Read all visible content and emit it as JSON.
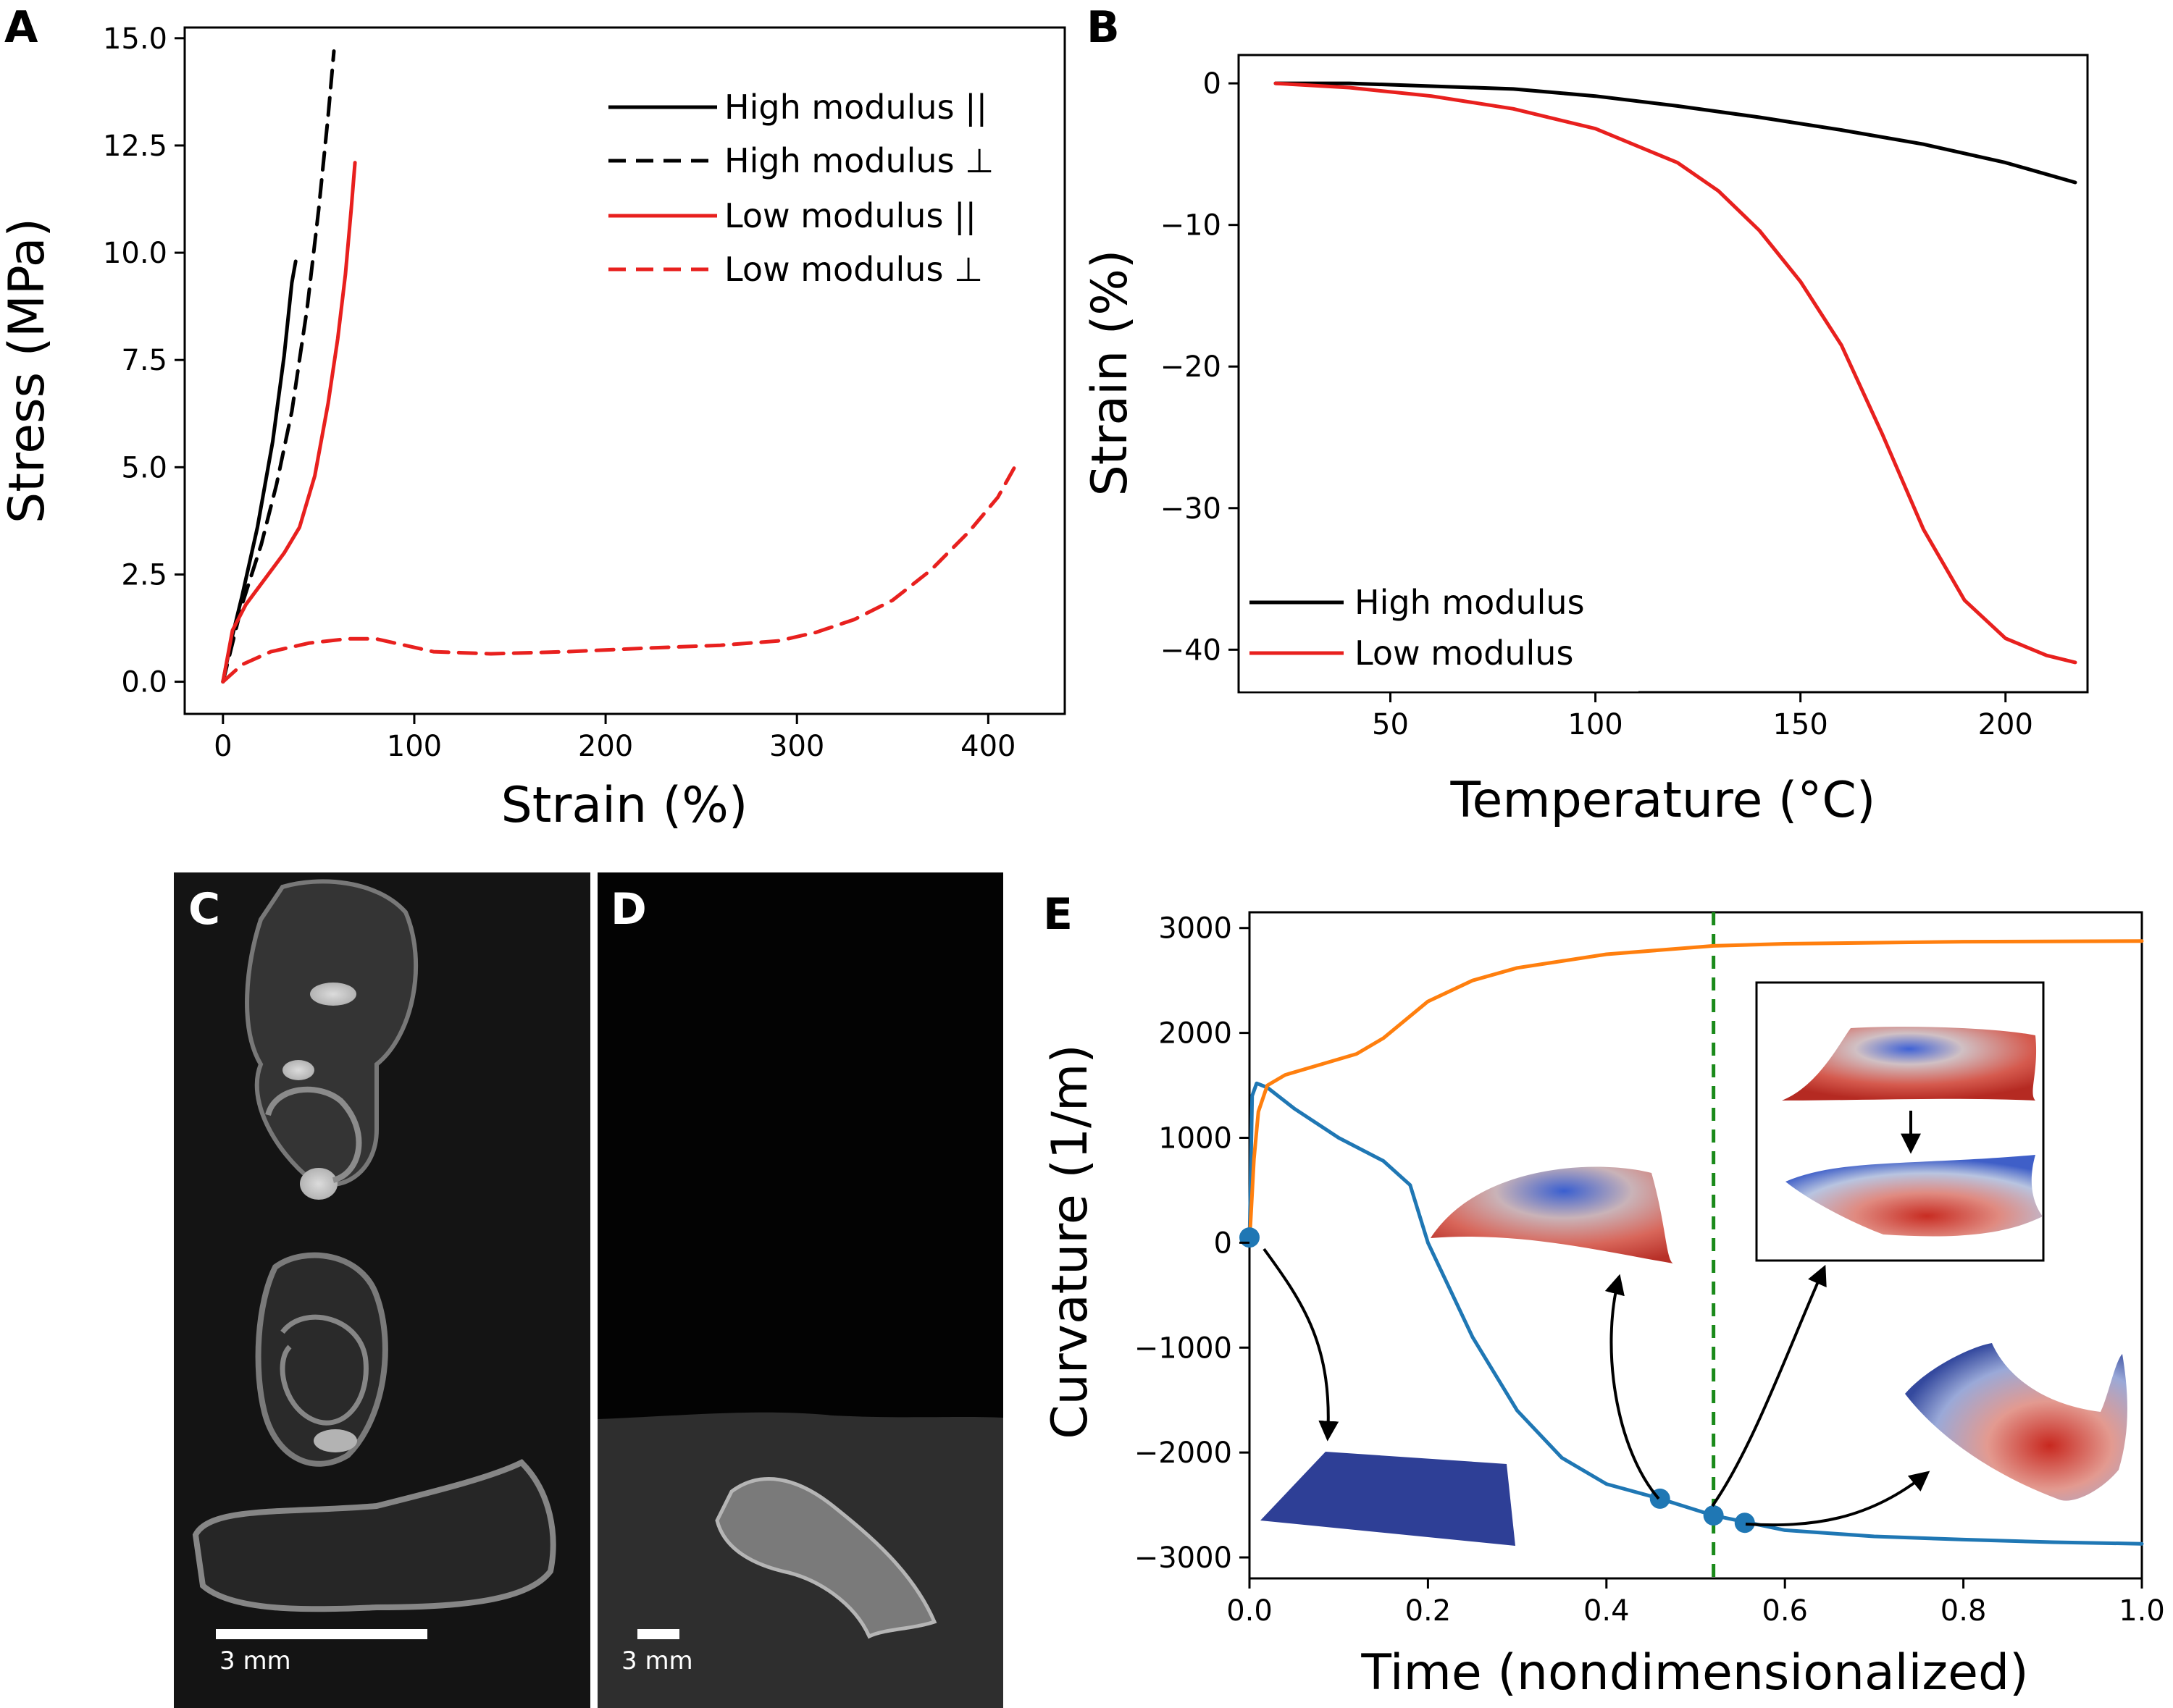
{
  "panels": {
    "A": {
      "letter": "A"
    },
    "B": {
      "letter": "B"
    },
    "C": {
      "letter": "C",
      "scale_label": "3 mm"
    },
    "D": {
      "letter": "D",
      "scale_label": "3 mm"
    },
    "E": {
      "letter": "E"
    }
  },
  "colors": {
    "high_modulus": "#000000",
    "low_modulus": "#e8201e",
    "blue_curve": "#1f77b4",
    "orange_curve": "#ff7f0e",
    "dashed_marker": "#1a8a1a"
  },
  "chart_data": [
    {
      "id": "A",
      "type": "line",
      "title": "",
      "xlabel": "Strain (%)",
      "ylabel": "Stress (MPa)",
      "xlim": [
        -20,
        440
      ],
      "ylim": [
        -0.75,
        15.25
      ],
      "xticks": [
        0,
        100,
        200,
        300,
        400
      ],
      "yticks": [
        0.0,
        2.5,
        5.0,
        7.5,
        10.0,
        12.5,
        15.0
      ],
      "yticklabels": [
        "0.0",
        "2.5",
        "5.0",
        "7.5",
        "10.0",
        "12.5",
        "15.0"
      ],
      "grid": false,
      "legend": "top-right",
      "series": [
        {
          "name": "High modulus ||",
          "color": "#000000",
          "dash": "solid",
          "x": [
            0,
            4,
            10,
            18,
            26,
            32,
            36,
            38
          ],
          "y": [
            0,
            0.9,
            2.0,
            3.6,
            5.6,
            7.6,
            9.3,
            9.8
          ]
        },
        {
          "name": "High modulus ⊥",
          "color": "#000000",
          "dash": "dashed",
          "x": [
            0,
            10,
            20,
            28,
            36,
            44,
            50,
            55,
            58
          ],
          "y": [
            0,
            1.8,
            3.2,
            4.6,
            6.3,
            8.7,
            11.0,
            13.2,
            14.7
          ]
        },
        {
          "name": "Low modulus ||",
          "color": "#e8201e",
          "dash": "solid",
          "x": [
            0,
            5,
            12,
            22,
            32,
            40,
            48,
            55,
            60,
            64,
            67,
            69
          ],
          "y": [
            0,
            1.2,
            1.8,
            2.4,
            3.0,
            3.6,
            4.8,
            6.5,
            8.0,
            9.5,
            11.0,
            12.1
          ]
        },
        {
          "name": "Low modulus ⊥",
          "color": "#e8201e",
          "dash": "dashed",
          "x": [
            0,
            10,
            25,
            45,
            65,
            80,
            95,
            110,
            140,
            180,
            220,
            260,
            290,
            310,
            330,
            350,
            370,
            390,
            405,
            415
          ],
          "y": [
            0,
            0.4,
            0.7,
            0.9,
            1.0,
            1.0,
            0.85,
            0.7,
            0.65,
            0.7,
            0.78,
            0.85,
            0.95,
            1.15,
            1.45,
            1.9,
            2.6,
            3.5,
            4.3,
            5.1
          ]
        }
      ]
    },
    {
      "id": "B",
      "type": "line",
      "title": "",
      "xlabel": "Temperature (°C)",
      "ylabel": "Strain (%)",
      "xlim": [
        13,
        220
      ],
      "ylim": [
        -43,
        2
      ],
      "xticks": [
        50,
        100,
        150,
        200
      ],
      "yticks": [
        0,
        -10,
        -20,
        -30,
        -40
      ],
      "yticklabels": [
        "0",
        "−10",
        "−20",
        "−30",
        "−40"
      ],
      "grid": false,
      "legend": "bottom-left",
      "series": [
        {
          "name": "High modulus",
          "color": "#000000",
          "dash": "solid",
          "x": [
            22,
            40,
            60,
            80,
            100,
            120,
            140,
            160,
            180,
            200,
            217
          ],
          "y": [
            0,
            0,
            -0.2,
            -0.4,
            -0.9,
            -1.6,
            -2.4,
            -3.3,
            -4.3,
            -5.6,
            -7.0
          ]
        },
        {
          "name": "Low modulus",
          "color": "#e8201e",
          "dash": "solid",
          "x": [
            22,
            40,
            60,
            80,
            100,
            120,
            130,
            140,
            150,
            160,
            170,
            180,
            190,
            200,
            210,
            217
          ],
          "y": [
            0,
            -0.3,
            -0.9,
            -1.8,
            -3.2,
            -5.6,
            -7.6,
            -10.4,
            -14.0,
            -18.5,
            -24.8,
            -31.5,
            -36.5,
            -39.2,
            -40.4,
            -40.9
          ]
        }
      ]
    },
    {
      "id": "E",
      "type": "line",
      "title": "",
      "xlabel": "Time (nondimensionalized)",
      "ylabel": "Curvature (1/m)",
      "xlim": [
        0.0,
        1.0
      ],
      "ylim": [
        -3200,
        3150
      ],
      "xticks": [
        0.0,
        0.2,
        0.4,
        0.6,
        0.8,
        1.0
      ],
      "xticklabels": [
        "0.0",
        "0.2",
        "0.4",
        "0.6",
        "0.8",
        "1.0"
      ],
      "yticks": [
        3000,
        2000,
        1000,
        0,
        -1000,
        -2000,
        -3000
      ],
      "yticklabels": [
        "3000",
        "2000",
        "1000",
        "0",
        "−1000",
        "−2000",
        "−3000"
      ],
      "grid": false,
      "vline_x": 0.52,
      "markers": [
        {
          "x": 0.0,
          "y": 50
        },
        {
          "x": 0.46,
          "y": -2440
        },
        {
          "x": 0.52,
          "y": -2600
        },
        {
          "x": 0.555,
          "y": -2670
        }
      ],
      "series": [
        {
          "color": "#1f77b4",
          "x": [
            0.0,
            0.003,
            0.008,
            0.02,
            0.05,
            0.1,
            0.15,
            0.18,
            0.2,
            0.25,
            0.3,
            0.35,
            0.4,
            0.46,
            0.52,
            0.6,
            0.7,
            0.8,
            0.9,
            1.0
          ],
          "y": [
            0,
            1400,
            1520,
            1480,
            1280,
            1000,
            780,
            550,
            0,
            -900,
            -1600,
            -2050,
            -2300,
            -2440,
            -2600,
            -2740,
            -2800,
            -2830,
            -2855,
            -2870
          ]
        },
        {
          "color": "#ff7f0e",
          "x": [
            0.0,
            0.005,
            0.01,
            0.02,
            0.04,
            0.08,
            0.12,
            0.15,
            0.2,
            0.25,
            0.3,
            0.4,
            0.52,
            0.6,
            0.8,
            1.0
          ],
          "y": [
            0,
            800,
            1250,
            1500,
            1600,
            1700,
            1800,
            1950,
            2300,
            2500,
            2620,
            2750,
            2830,
            2850,
            2870,
            2875
          ]
        }
      ]
    }
  ]
}
